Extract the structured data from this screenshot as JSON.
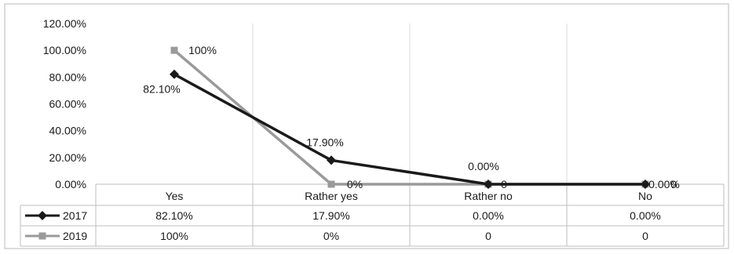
{
  "chart_data": {
    "type": "line",
    "categories": [
      "Yes",
      "Rather yes",
      "Rather no",
      "No"
    ],
    "ylim": [
      0,
      120
    ],
    "yticks": [
      "0.00%",
      "20.00%",
      "40.00%",
      "60.00%",
      "80.00%",
      "100.00%",
      "120.00%"
    ],
    "grid": "vertical",
    "legend": "data-table",
    "series": [
      {
        "name": "2017",
        "color": "#1a1a1a",
        "marker": "diamond",
        "values": [
          82.1,
          17.9,
          0,
          0
        ],
        "labels": [
          "82.10%",
          "17.90%",
          "0.00%",
          "0.00%"
        ],
        "table": [
          "82.10%",
          "17.90%",
          "0.00%",
          "0.00%"
        ]
      },
      {
        "name": "2019",
        "color": "#9a9a9a",
        "marker": "square",
        "values": [
          100,
          0,
          0,
          0
        ],
        "labels": [
          "100%",
          "0%",
          "0",
          "0"
        ],
        "table": [
          "100%",
          "0%",
          "0",
          "0"
        ]
      }
    ]
  }
}
